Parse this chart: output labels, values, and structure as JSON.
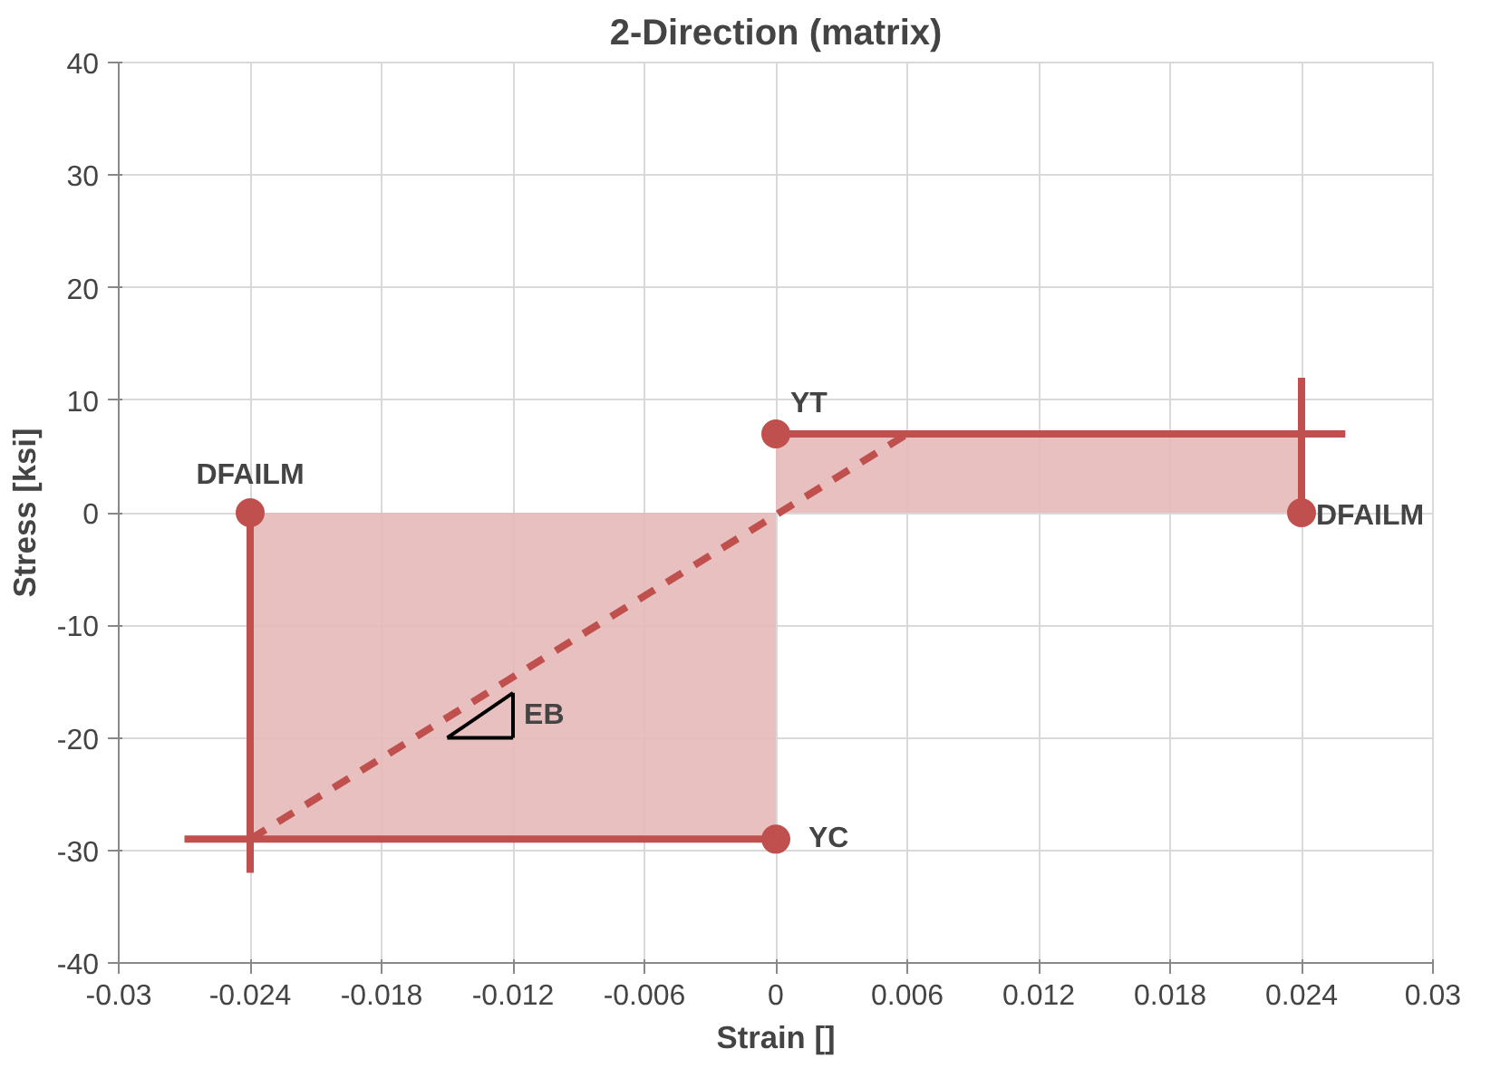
{
  "chart_data": {
    "type": "line",
    "title": "2-Direction (matrix)",
    "xlabel": "Strain []",
    "ylabel": "Stress [ksi]",
    "xlim": [
      -0.03,
      0.03
    ],
    "xticks": [
      -0.03,
      -0.024,
      -0.018,
      -0.012,
      -0.006,
      0,
      0.006,
      0.012,
      0.018,
      0.024,
      0.03
    ],
    "ylim": [
      -40,
      40
    ],
    "yticks": [
      -40,
      -30,
      -20,
      -10,
      0,
      10,
      20,
      30,
      40
    ],
    "grid": true,
    "series": [
      {
        "type": "area",
        "color": "#e6b9b8",
        "x": [
          0,
          0.024
        ],
        "values": [
          7,
          7
        ]
      },
      {
        "type": "area",
        "color": "#e6b9b8",
        "x": [
          -0.024,
          0
        ],
        "values": [
          -29,
          -29
        ]
      },
      {
        "color": "#c0504d",
        "line_style": "solid",
        "x": [
          0,
          0.026
        ],
        "values": [
          7,
          7
        ]
      },
      {
        "color": "#c0504d",
        "line_style": "solid",
        "x": [
          0.024,
          0.024
        ],
        "values": [
          0,
          12
        ]
      },
      {
        "color": "#c0504d",
        "line_style": "solid",
        "x": [
          -0.027,
          0
        ],
        "values": [
          -29,
          -29
        ]
      },
      {
        "color": "#c0504d",
        "line_style": "solid",
        "x": [
          -0.024,
          -0.024
        ],
        "values": [
          0,
          -32
        ]
      },
      {
        "color": "#c0504d",
        "line_style": "dashed",
        "x": [
          -0.024,
          0.006
        ],
        "values": [
          -29,
          7
        ]
      },
      {
        "color": "#000000",
        "line_style": "solid",
        "x": [
          -0.015,
          -0.012
        ],
        "values": [
          -20,
          -16
        ]
      },
      {
        "color": "#000000",
        "line_style": "solid",
        "x": [
          -0.015,
          -0.012
        ],
        "values": [
          -20,
          -20
        ]
      },
      {
        "color": "#000000",
        "line_style": "solid",
        "x": [
          -0.012,
          -0.012
        ],
        "values": [
          -20,
          -16
        ]
      },
      {
        "type": "scatter",
        "color": "#c0504d",
        "marker": "circle",
        "x": [
          0,
          0.024,
          -0.024,
          0
        ],
        "values": [
          7,
          0,
          0,
          -29
        ]
      }
    ],
    "annotations": [
      {
        "text": "YT",
        "x": 0,
        "y": 7
      },
      {
        "text": "DFAILM",
        "x": 0.024,
        "y": 0
      },
      {
        "text": "DFAILM",
        "x": -0.024,
        "y": 0
      },
      {
        "text": "YC",
        "x": 0,
        "y": -29
      },
      "EB"
    ]
  }
}
